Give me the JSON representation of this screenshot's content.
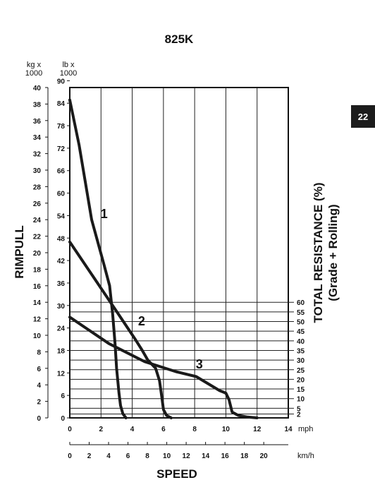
{
  "page_tab": "22",
  "chart_data": {
    "type": "line",
    "title": "825K",
    "xlabel": "SPEED",
    "ylabel": "RIMPULL",
    "y2label_line1": "TOTAL RESISTANCE (%)",
    "y2label_line2": "(Grade + Rolling)",
    "x_unit_mph": "mph",
    "x_unit_kmh": "km/h",
    "y_unit_kg": "kg x\n1000",
    "y_unit_lb": "lb x\n1000",
    "xlim_mph": [
      0,
      14
    ],
    "x_ticks_mph": [
      "0",
      "2",
      "4",
      "6",
      "8",
      "10",
      "12",
      "14"
    ],
    "x_ticks_kmh": [
      "0",
      "2",
      "4",
      "6",
      "8",
      "10",
      "12",
      "14",
      "16",
      "18",
      "20"
    ],
    "ylim_kg": [
      0,
      40
    ],
    "y_ticks_kg": [
      "0",
      "2",
      "4",
      "6",
      "8",
      "10",
      "12",
      "14",
      "16",
      "18",
      "20",
      "22",
      "24",
      "26",
      "28",
      "30",
      "32",
      "34",
      "36",
      "38",
      "40"
    ],
    "y_ticks_lb": [
      "0",
      "6",
      "12",
      "18",
      "24",
      "30",
      "36",
      "42",
      "48",
      "54",
      "60",
      "66",
      "72",
      "78",
      "84",
      "90"
    ],
    "resistance_ticks": [
      "2",
      "5",
      "10",
      "15",
      "20",
      "25",
      "30",
      "35",
      "40",
      "45",
      "50",
      "55",
      "60"
    ],
    "series": [
      {
        "name": "1",
        "x": [
          0,
          0.6,
          1.4,
          2.2,
          2.55,
          2.75,
          2.9,
          3.0,
          3.15,
          3.25,
          3.4,
          3.6
        ],
        "y": [
          38.5,
          33,
          24,
          18.5,
          16,
          12.5,
          9,
          6,
          3,
          1.5,
          0.5,
          0
        ]
      },
      {
        "name": "2",
        "x": [
          0,
          1.5,
          3.0,
          4.2,
          4.6,
          5.0,
          5.5,
          5.75,
          5.9,
          6.0,
          6.2,
          6.5
        ],
        "y": [
          21.3,
          17.1,
          12.9,
          9.5,
          8.3,
          7.0,
          6.0,
          4.5,
          2.5,
          1,
          0.3,
          0
        ]
      },
      {
        "name": "3",
        "x": [
          0,
          2.5,
          4.8,
          6.8,
          8.1,
          9.6,
          10.0,
          10.2,
          10.4,
          10.8,
          11.4,
          12.0
        ],
        "y": [
          12.2,
          9.0,
          6.8,
          5.6,
          5.0,
          3.3,
          3.0,
          2.2,
          0.7,
          0.3,
          0.1,
          0
        ]
      }
    ],
    "gear_label_positions": {
      "1": [
        2.2,
        24.2
      ],
      "2": [
        4.6,
        11.2
      ],
      "3": [
        8.3,
        6.0
      ]
    },
    "grid": true
  }
}
